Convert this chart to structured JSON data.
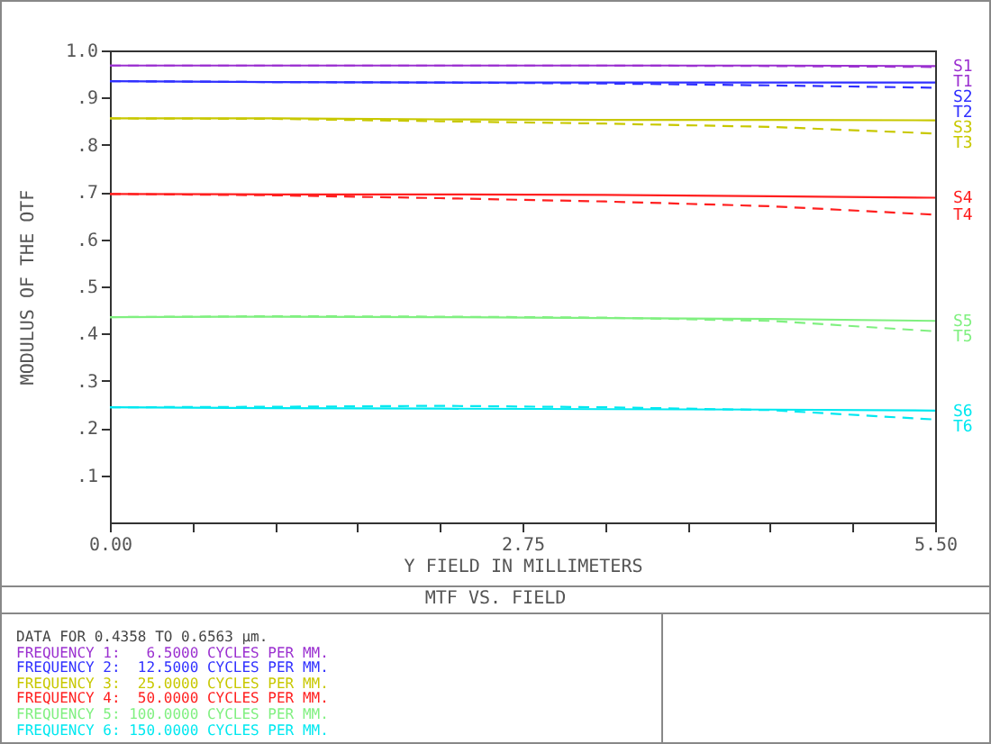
{
  "chart_data": {
    "type": "line",
    "title": "MTF VS. FIELD",
    "xlabel": "Y FIELD IN MILLIMETERS",
    "ylabel": "MODULUS OF THE OTF",
    "x": [
      0,
      1.1,
      2.2,
      3.3,
      4.4,
      5.5
    ],
    "xlim": [
      0,
      5.5
    ],
    "xticks": [
      {
        "value": 0,
        "label": "0.00"
      },
      {
        "value": 0.55,
        "label": null
      },
      {
        "value": 1.1,
        "label": null
      },
      {
        "value": 1.65,
        "label": null
      },
      {
        "value": 2.2,
        "label": null
      },
      2.75,
      {
        "value": 3.3,
        "label": null
      },
      {
        "value": 3.85,
        "label": null
      },
      {
        "value": 4.4,
        "label": null
      },
      {
        "value": 4.95,
        "label": null
      },
      {
        "value": 5.5,
        "label": "5.50"
      }
    ],
    "ylim": [
      0,
      1
    ],
    "yticks": [
      {
        "value": 0.1,
        "label": ".1"
      },
      {
        "value": 0.2,
        "label": ".2"
      },
      {
        "value": 0.3,
        "label": ".3"
      },
      {
        "value": 0.4,
        "label": ".4"
      },
      {
        "value": 0.5,
        "label": ".5"
      },
      {
        "value": 0.6,
        "label": ".6"
      },
      {
        "value": 0.7,
        "label": ".7"
      },
      {
        "value": 0.8,
        "label": ".8"
      },
      {
        "value": 0.9,
        "label": ".9"
      },
      {
        "value": 1.0,
        "label": "1.0"
      }
    ],
    "grid": false,
    "legend": false,
    "marker": "none",
    "series": [
      {
        "name": "S1",
        "color": "#9b30d0",
        "line_style": "solid",
        "values": [
          0.968,
          0.968,
          0.968,
          0.968,
          0.968,
          0.967
        ]
      },
      {
        "name": "T1",
        "color": "#9b30d0",
        "line_style": "dashed",
        "values": [
          0.968,
          0.968,
          0.968,
          0.968,
          0.967,
          0.965
        ]
      },
      {
        "name": "S2",
        "color": "#3030ff",
        "line_style": "solid",
        "values": [
          0.935,
          0.933,
          0.932,
          0.932,
          0.932,
          0.932
        ]
      },
      {
        "name": "T2",
        "color": "#3030ff",
        "line_style": "dashed",
        "values": [
          0.935,
          0.933,
          0.932,
          0.93,
          0.926,
          0.921
        ]
      },
      {
        "name": "S3",
        "color": "#c8c800",
        "line_style": "solid",
        "values": [
          0.856,
          0.856,
          0.854,
          0.853,
          0.853,
          0.852
        ]
      },
      {
        "name": "T3",
        "color": "#c8c800",
        "line_style": "dashed",
        "values": [
          0.856,
          0.855,
          0.85,
          0.845,
          0.838,
          0.824
        ]
      },
      {
        "name": "S4",
        "color": "#ff2020",
        "line_style": "solid",
        "values": [
          0.696,
          0.695,
          0.695,
          0.694,
          0.691,
          0.688
        ]
      },
      {
        "name": "T4",
        "color": "#ff2020",
        "line_style": "dashed",
        "values": [
          0.696,
          0.693,
          0.687,
          0.68,
          0.67,
          0.652
        ]
      },
      {
        "name": "S5",
        "color": "#80f080",
        "line_style": "solid",
        "values": [
          0.435,
          0.436,
          0.435,
          0.433,
          0.431,
          0.427
        ]
      },
      {
        "name": "T5",
        "color": "#80f080",
        "line_style": "dashed",
        "values": [
          0.435,
          0.437,
          0.436,
          0.434,
          0.427,
          0.405
        ]
      },
      {
        "name": "S6",
        "color": "#00e8f0",
        "line_style": "solid",
        "values": [
          0.244,
          0.242,
          0.241,
          0.24,
          0.239,
          0.237
        ]
      },
      {
        "name": "T6",
        "color": "#00e8f0",
        "line_style": "dashed",
        "values": [
          0.244,
          0.245,
          0.247,
          0.244,
          0.238,
          0.218
        ]
      }
    ],
    "annotations": [
      "DATA FOR 0.4358 TO 0.6563 µm.",
      "FREQUENCY 1:   6.5000 CYCLES PER MM.",
      "FREQUENCY 2:  12.5000 CYCLES PER MM.",
      "FREQUENCY 3:  25.0000 CYCLES PER MM.",
      "FREQUENCY 4:  50.0000 CYCLES PER MM.",
      "FREQUENCY 5: 100.0000 CYCLES PER MM.",
      "FREQUENCY 6: 150.0000 CYCLES PER MM."
    ]
  }
}
